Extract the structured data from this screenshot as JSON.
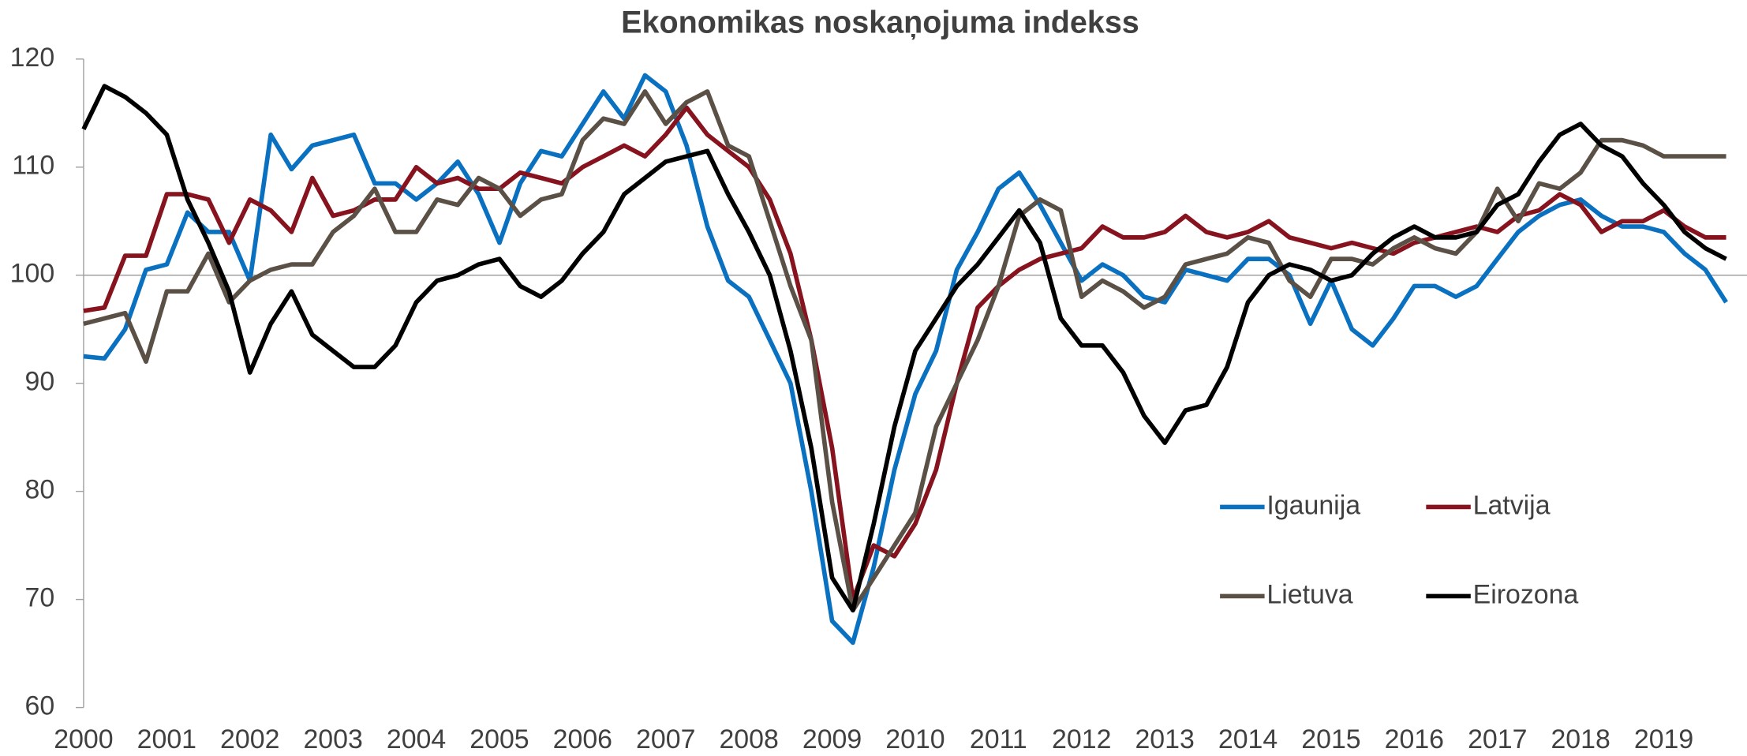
{
  "chart_data": {
    "type": "line",
    "title": "Ekonomikas noskaņojuma indekss",
    "x": [
      2000,
      2000.25,
      2000.5,
      2000.75,
      2001,
      2001.25,
      2001.5,
      2001.75,
      2002,
      2002.25,
      2002.5,
      2002.75,
      2003,
      2003.25,
      2003.5,
      2003.75,
      2004,
      2004.25,
      2004.5,
      2004.75,
      2005,
      2005.25,
      2005.5,
      2005.75,
      2006,
      2006.25,
      2006.5,
      2006.75,
      2007,
      2007.25,
      2007.5,
      2007.75,
      2008,
      2008.25,
      2008.5,
      2008.75,
      2009,
      2009.25,
      2009.5,
      2009.75,
      2010,
      2010.25,
      2010.5,
      2010.75,
      2011,
      2011.25,
      2011.5,
      2011.75,
      2012,
      2012.25,
      2012.5,
      2012.75,
      2013,
      2013.25,
      2013.5,
      2013.75,
      2014,
      2014.25,
      2014.5,
      2014.75,
      2015,
      2015.25,
      2015.5,
      2015.75,
      2016,
      2016.25,
      2016.5,
      2016.75,
      2017,
      2017.25,
      2017.5,
      2017.75,
      2018,
      2018.25,
      2018.5,
      2018.75,
      2019,
      2019.25,
      2019.5,
      2019.75
    ],
    "series": [
      {
        "name": "Igaunija",
        "color": "#0a70c0",
        "values": [
          92.5,
          92.3,
          95,
          100.5,
          101,
          105.8,
          104,
          104,
          99.5,
          113,
          109.8,
          112,
          112.5,
          113,
          108.5,
          108.5,
          107,
          108.5,
          110.5,
          107.5,
          103,
          108.5,
          111.5,
          111,
          114,
          117,
          114.5,
          118.5,
          117,
          112,
          104.5,
          99.5,
          98,
          94,
          90,
          80,
          68,
          66,
          73,
          82,
          89,
          93,
          100.5,
          104,
          108,
          109.5,
          106.5,
          103,
          99.5,
          101,
          100,
          98,
          97.5,
          100.5,
          100,
          99.5,
          101.5,
          101.5,
          100,
          95.5,
          99.5,
          95,
          93.5,
          96,
          99,
          99,
          98,
          99,
          101.5,
          104,
          105.5,
          106.5,
          107,
          105.5,
          104.5,
          104.5,
          104,
          102,
          100.5,
          97.5
        ]
      },
      {
        "name": "Latvija",
        "color": "#86131d",
        "values": [
          96.7,
          97,
          101.8,
          101.8,
          107.5,
          107.5,
          107,
          103,
          107,
          106,
          104,
          109,
          105.5,
          106,
          107,
          107,
          110,
          108.5,
          109,
          108,
          108,
          109.5,
          109,
          108.5,
          110,
          111,
          112,
          111,
          113,
          115.5,
          113,
          111.5,
          110,
          107,
          102,
          94,
          84,
          70,
          75,
          74,
          77,
          82,
          90,
          97,
          99,
          100.5,
          101.5,
          102,
          102.5,
          104.5,
          103.5,
          103.5,
          104,
          105.5,
          104,
          103.5,
          104,
          105,
          103.5,
          103,
          102.5,
          103,
          102.5,
          102,
          103,
          103.5,
          104,
          104.5,
          104,
          105.5,
          106,
          107.5,
          106.5,
          104,
          105,
          105,
          106,
          104.5,
          103.5,
          103.5
        ]
      },
      {
        "name": "Lietuva",
        "color": "#5a5046",
        "values": [
          95.5,
          96,
          96.5,
          92,
          98.5,
          98.5,
          102,
          97.5,
          99.5,
          100.5,
          101,
          101,
          104,
          105.5,
          108,
          104,
          104,
          107,
          106.5,
          109,
          108,
          105.5,
          107,
          107.5,
          112.5,
          114.5,
          114,
          117,
          114,
          116,
          117,
          112,
          111,
          105,
          99,
          94,
          79,
          69,
          72,
          75,
          78,
          86,
          90,
          94,
          99,
          105.5,
          107,
          106,
          98,
          99.5,
          98.5,
          97,
          98,
          101,
          101.5,
          102,
          103.5,
          103,
          99.5,
          98,
          101.5,
          101.5,
          101,
          102.5,
          103.5,
          102.5,
          102,
          104,
          108,
          105,
          108.5,
          108,
          109.5,
          112.5,
          112.5,
          112,
          111,
          111,
          111,
          111
        ]
      },
      {
        "name": "Eirozona",
        "color": "#000000",
        "values": [
          113.5,
          117.5,
          116.5,
          115,
          113,
          107,
          103,
          98.5,
          91,
          95.5,
          98.5,
          94.5,
          93,
          91.5,
          91.5,
          93.5,
          97.5,
          99.5,
          100,
          101,
          101.5,
          99,
          98,
          99.5,
          102,
          104,
          107.5,
          109,
          110.5,
          111,
          111.5,
          107.5,
          104,
          100,
          93,
          84,
          72,
          69,
          77,
          86,
          93,
          96,
          99,
          101,
          103.5,
          106,
          103,
          96,
          93.5,
          93.5,
          91,
          87,
          84.5,
          87.5,
          88,
          91.5,
          97.5,
          100,
          101,
          100.5,
          99.5,
          100,
          102,
          103.5,
          104.5,
          103.5,
          103.5,
          104,
          106.5,
          107.5,
          110.5,
          113,
          114,
          112,
          111,
          108.5,
          106.5,
          104,
          102.5,
          101.5
        ]
      }
    ],
    "xlim": [
      2000,
      2020
    ],
    "xticks": [
      2000,
      2001,
      2002,
      2003,
      2004,
      2005,
      2006,
      2007,
      2008,
      2009,
      2010,
      2011,
      2012,
      2013,
      2014,
      2015,
      2016,
      2017,
      2018,
      2019
    ],
    "ylim": [
      60,
      120
    ],
    "yticks": [
      60,
      70,
      80,
      90,
      100,
      110,
      120
    ],
    "reference_line": 100
  }
}
